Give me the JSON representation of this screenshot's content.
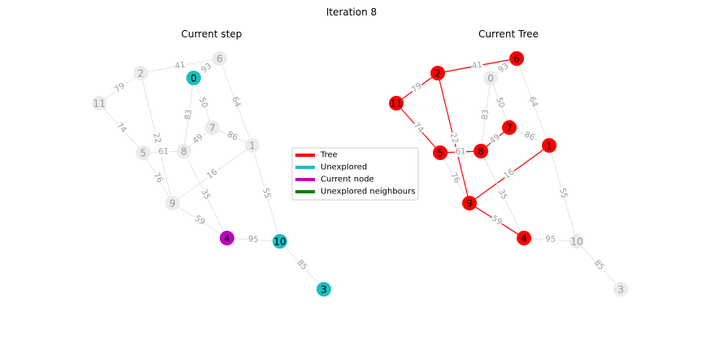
{
  "figure": {
    "title": "Iteration 8",
    "left_title": "Current step",
    "right_title": "Current Tree"
  },
  "colors": {
    "default_node": "#ebebeb",
    "default_edge": "#e4e4e4",
    "label_gray": "#9a9a9a",
    "tree": "#ff0000",
    "unexplored": "#19bfbf",
    "current_node": "#bf00bf",
    "unexplored_neighbours": "#008000"
  },
  "legend": [
    {
      "label": "Tree",
      "color": "#ff0000"
    },
    {
      "label": "Unexplored",
      "color": "#19bfbf"
    },
    {
      "label": "Current node",
      "color": "#bf00bf"
    },
    {
      "label": "Unexplored neighbours",
      "color": "#008000"
    }
  ],
  "nodes": [
    "0",
    "1",
    "2",
    "3",
    "4",
    "5",
    "6",
    "7",
    "8",
    "9",
    "10",
    "11"
  ],
  "edges": [
    {
      "from": "2",
      "to": "6",
      "weight": "41"
    },
    {
      "from": "0",
      "to": "6",
      "weight": "93"
    },
    {
      "from": "2",
      "to": "11",
      "weight": "79"
    },
    {
      "from": "0",
      "to": "7",
      "weight": "50"
    },
    {
      "from": "0",
      "to": "8",
      "weight": "83"
    },
    {
      "from": "6",
      "to": "1",
      "weight": "64"
    },
    {
      "from": "2",
      "to": "9",
      "weight": "22"
    },
    {
      "from": "11",
      "to": "5",
      "weight": "74"
    },
    {
      "from": "8",
      "to": "7",
      "weight": "49"
    },
    {
      "from": "7",
      "to": "1",
      "weight": "86"
    },
    {
      "from": "5",
      "to": "8",
      "weight": "61"
    },
    {
      "from": "5",
      "to": "9",
      "weight": "76"
    },
    {
      "from": "9",
      "to": "1",
      "weight": "16"
    },
    {
      "from": "8",
      "to": "4",
      "weight": "35"
    },
    {
      "from": "1",
      "to": "10",
      "weight": "55"
    },
    {
      "from": "9",
      "to": "4",
      "weight": "59"
    },
    {
      "from": "4",
      "to": "10",
      "weight": "95"
    },
    {
      "from": "10",
      "to": "3",
      "weight": "85"
    }
  ],
  "left_state": {
    "node_colors": {
      "0": "unexplored",
      "10": "unexplored",
      "3": "unexplored",
      "4": "current_node"
    },
    "edge_colors": {}
  },
  "right_state": {
    "node_colors": {
      "2": "tree",
      "6": "tree",
      "11": "tree",
      "5": "tree",
      "8": "tree",
      "7": "tree",
      "1": "tree",
      "9": "tree",
      "4": "tree"
    },
    "tree_edges": [
      "2-6",
      "2-11",
      "2-9",
      "11-5",
      "5-8",
      "8-7",
      "9-1",
      "9-4"
    ]
  }
}
